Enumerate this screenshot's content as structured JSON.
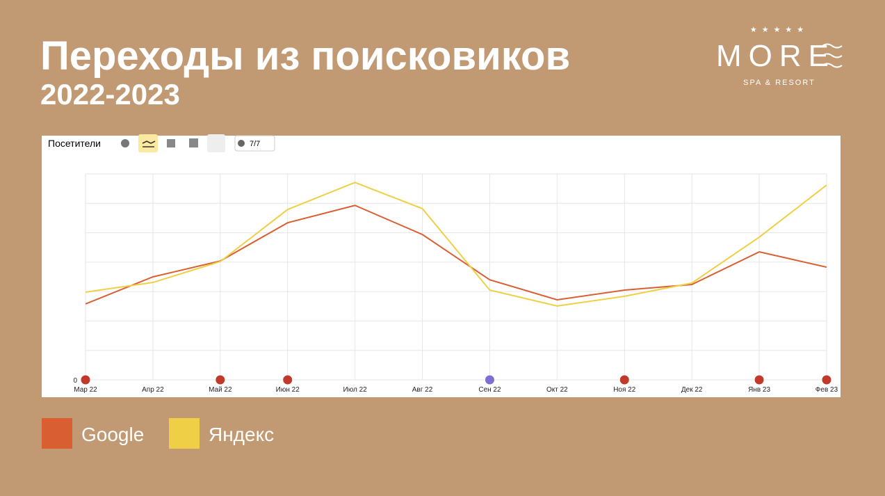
{
  "header": {
    "title": "Переходы из поисковиков",
    "subtitle": "2022-2023"
  },
  "logo": {
    "name": "MORE",
    "tagline": "SPA & RESORT"
  },
  "toolbar": {
    "metric": "Посетители",
    "counter": "7/7"
  },
  "chart_data": {
    "type": "line",
    "categories": [
      "Мар 22",
      "Апр 22",
      "Май 22",
      "Июн 22",
      "Июл 22",
      "Авг 22",
      "Сен 22",
      "Окт 22",
      "Ноя 22",
      "Дек 22",
      "Янв 23",
      "Фев 23"
    ],
    "series": [
      {
        "name": "Google",
        "color": "#d95f33",
        "values": [
          2.58,
          3.5,
          4.04,
          5.34,
          5.93,
          4.94,
          3.4,
          2.72,
          3.05,
          3.24,
          4.35,
          3.83
        ]
      },
      {
        "name": "Яндекс",
        "color": "#efcf45",
        "values": [
          2.98,
          3.31,
          4.02,
          5.79,
          6.71,
          5.82,
          3.05,
          2.51,
          2.84,
          3.29,
          4.85,
          6.62
        ]
      }
    ],
    "ylim": [
      0,
      7
    ],
    "yticks": [
      0,
      {
        "value": 1,
        "label": null
      },
      {
        "value": 2,
        "label": null
      },
      {
        "value": 3,
        "label": null
      },
      {
        "value": 4,
        "label": null
      },
      {
        "value": 5,
        "label": null
      },
      {
        "value": 6,
        "label": null
      },
      {
        "value": 7,
        "label": null
      }
    ],
    "grid": true
  }
}
